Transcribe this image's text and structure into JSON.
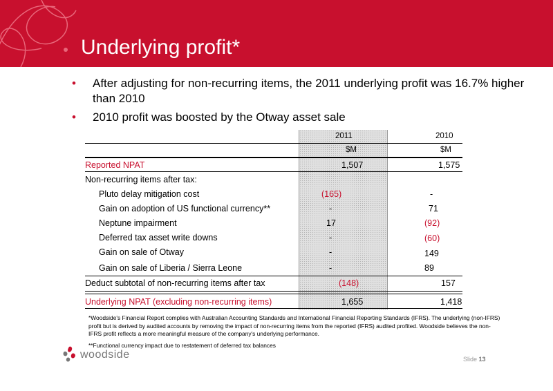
{
  "title": "Underlying profit*",
  "bullets": [
    "After adjusting for non-recurring items, the 2011 underlying profit was 16.7% higher than 2010",
    "2010 profit was boosted by the Otway asset sale"
  ],
  "table": {
    "years": [
      "2011",
      "2010"
    ],
    "units": [
      "$M",
      "$M"
    ],
    "rows": [
      {
        "label": "Reported NPAT",
        "v2011": "1,507",
        "v2010": "1,575"
      },
      {
        "label": "Non-recurring items after tax:"
      },
      {
        "label": "Pluto delay mitigation cost",
        "v2011": "(165)",
        "v2010": "-"
      },
      {
        "label": "Gain on adoption of US functional currency**",
        "v2011": "-",
        "v2010": "71"
      },
      {
        "label": "Neptune impairment",
        "v2011": "17",
        "v2010": "(92)"
      },
      {
        "label": "Deferred tax asset write downs",
        "v2011": "-",
        "v2010": "(60)"
      },
      {
        "label": "Gain on sale of Otway",
        "v2011": "-",
        "v2010": "149"
      },
      {
        "label": "Gain on sale of Liberia / Sierra Leone",
        "v2011": "-",
        "v2010": "89"
      },
      {
        "label": "Deduct subtotal of non-recurring items after tax",
        "v2011": "(148)",
        "v2010": "157"
      },
      {
        "label": "Underlying NPAT (excluding non-recurring items)",
        "v2011": "1,655",
        "v2010": "1,418"
      }
    ]
  },
  "footnote1": "*Woodside's Financial Report complies with Australian Accounting Standards and International Financial Reporting Standards (IFRS). The underlying (non-IFRS) profit but is derived by audited accounts by removing the impact of non-recurring items from the reported (IFRS) audited profited. Woodside believes the non-IFRS profit reflects a more meaningful measure of the company's underlying performance.",
  "footnote2": "**Functional currency impact due to restatement of deferred tax balances",
  "logo_text": "woodside",
  "slide_label": "Slide",
  "slide_number": "13",
  "colors": {
    "brand_red": "#c8102e",
    "shade": "#e0e0e0"
  }
}
